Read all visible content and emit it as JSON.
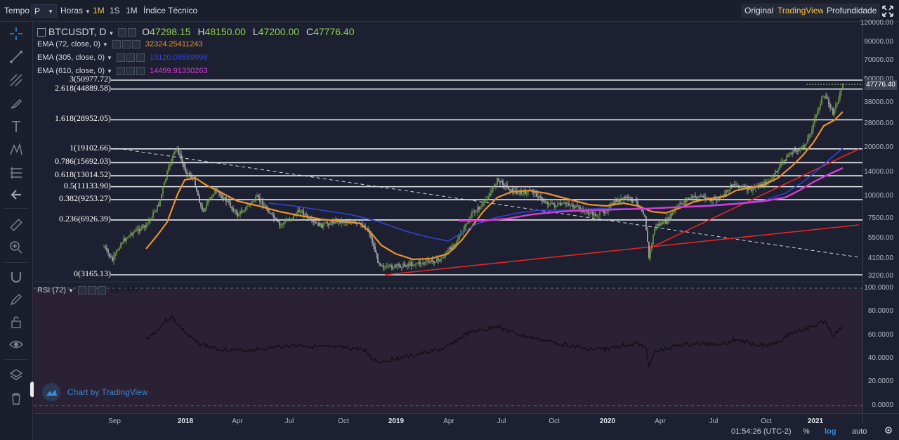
{
  "toolbar": {
    "tempo_label": "Tempo",
    "period_value": "P",
    "interval_label": "Horas",
    "btn_1m": "1M",
    "btn_1s": "1S",
    "btn_1m_b": "1M",
    "indicators": "Índice Técnico",
    "view_original": "Original",
    "view_tradingview": "TradingView",
    "view_depth": "Profundidade"
  },
  "legend": {
    "symbol": "BTCUSDT, D",
    "open_label": "O",
    "open": "47298.15",
    "high_label": "H",
    "high": "48150.00",
    "low_label": "L",
    "low": "47200.00",
    "close_label": "C",
    "close": "47776.40",
    "ema": [
      {
        "label": "EMA (72, close, 0)",
        "value": "32324.25411243",
        "color": "#e8922e"
      },
      {
        "label": "EMA (305, close, 0)",
        "value": "19120.09589996",
        "color": "#2f45d6"
      },
      {
        "label": "EMA (610, close, 0)",
        "value": "14499.91330263",
        "color": "#d63ad6"
      }
    ]
  },
  "fib_levels": [
    {
      "label": "3(50977.72)",
      "price": 50977.72
    },
    {
      "label": "2.618(44889.58)",
      "price": 44889.58
    },
    {
      "label": "1.618(28952.05)",
      "price": 28952.05
    },
    {
      "label": "1(19102.66)",
      "price": 19102.66
    },
    {
      "label": "0.786(15692.03)",
      "price": 15692.03
    },
    {
      "label": "0.618(13014.52)",
      "price": 13014.52
    },
    {
      "label": "0.5(11133.90)",
      "price": 11133.9
    },
    {
      "label": "0.382(9253.27)",
      "price": 9253.27
    },
    {
      "label": "0.236(6926.39)",
      "price": 6926.39
    },
    {
      "label": "0(3165.13)",
      "price": 3165.13
    }
  ],
  "price_axis": {
    "ticks": [
      "120000.00",
      "90000.00",
      "70000.00",
      "50000.00",
      "38000.00",
      "28000.00",
      "20000.00",
      "14000.00",
      "10000.00",
      "7500.00",
      "5500.00",
      "4100.00",
      "3200.00"
    ],
    "last_price": "47776.40"
  },
  "rsi": {
    "label": "RSI (72)",
    "value": "66.7357",
    "ticks": [
      "100.0000",
      "80.0000",
      "60.0000",
      "40.0000",
      "20.0000",
      "0.0000"
    ]
  },
  "time_axis": {
    "ticks": [
      {
        "label": "Sep",
        "bold": false
      },
      {
        "label": "2018",
        "bold": true
      },
      {
        "label": "Apr",
        "bold": false
      },
      {
        "label": "Jul",
        "bold": false
      },
      {
        "label": "Oct",
        "bold": false
      },
      {
        "label": "2019",
        "bold": true
      },
      {
        "label": "Apr",
        "bold": false
      },
      {
        "label": "Jul",
        "bold": false
      },
      {
        "label": "Oct",
        "bold": false
      },
      {
        "label": "2020",
        "bold": true
      },
      {
        "label": "Apr",
        "bold": false
      },
      {
        "label": "Jul",
        "bold": false
      },
      {
        "label": "Oct",
        "bold": false
      },
      {
        "label": "2021",
        "bold": true
      }
    ]
  },
  "footer": {
    "clock": "01:54:26 (UTC-2)",
    "percent": "%",
    "log": "log",
    "auto": "auto"
  },
  "watermark": "Chart by TradingView",
  "colors": {
    "background": "#1c2030",
    "rsi_background": "#2a2234",
    "accent": "#f5c242",
    "trendline": "#e32626",
    "candle_up": "#7fb34a",
    "candle_down": "#c9c9c9"
  }
}
